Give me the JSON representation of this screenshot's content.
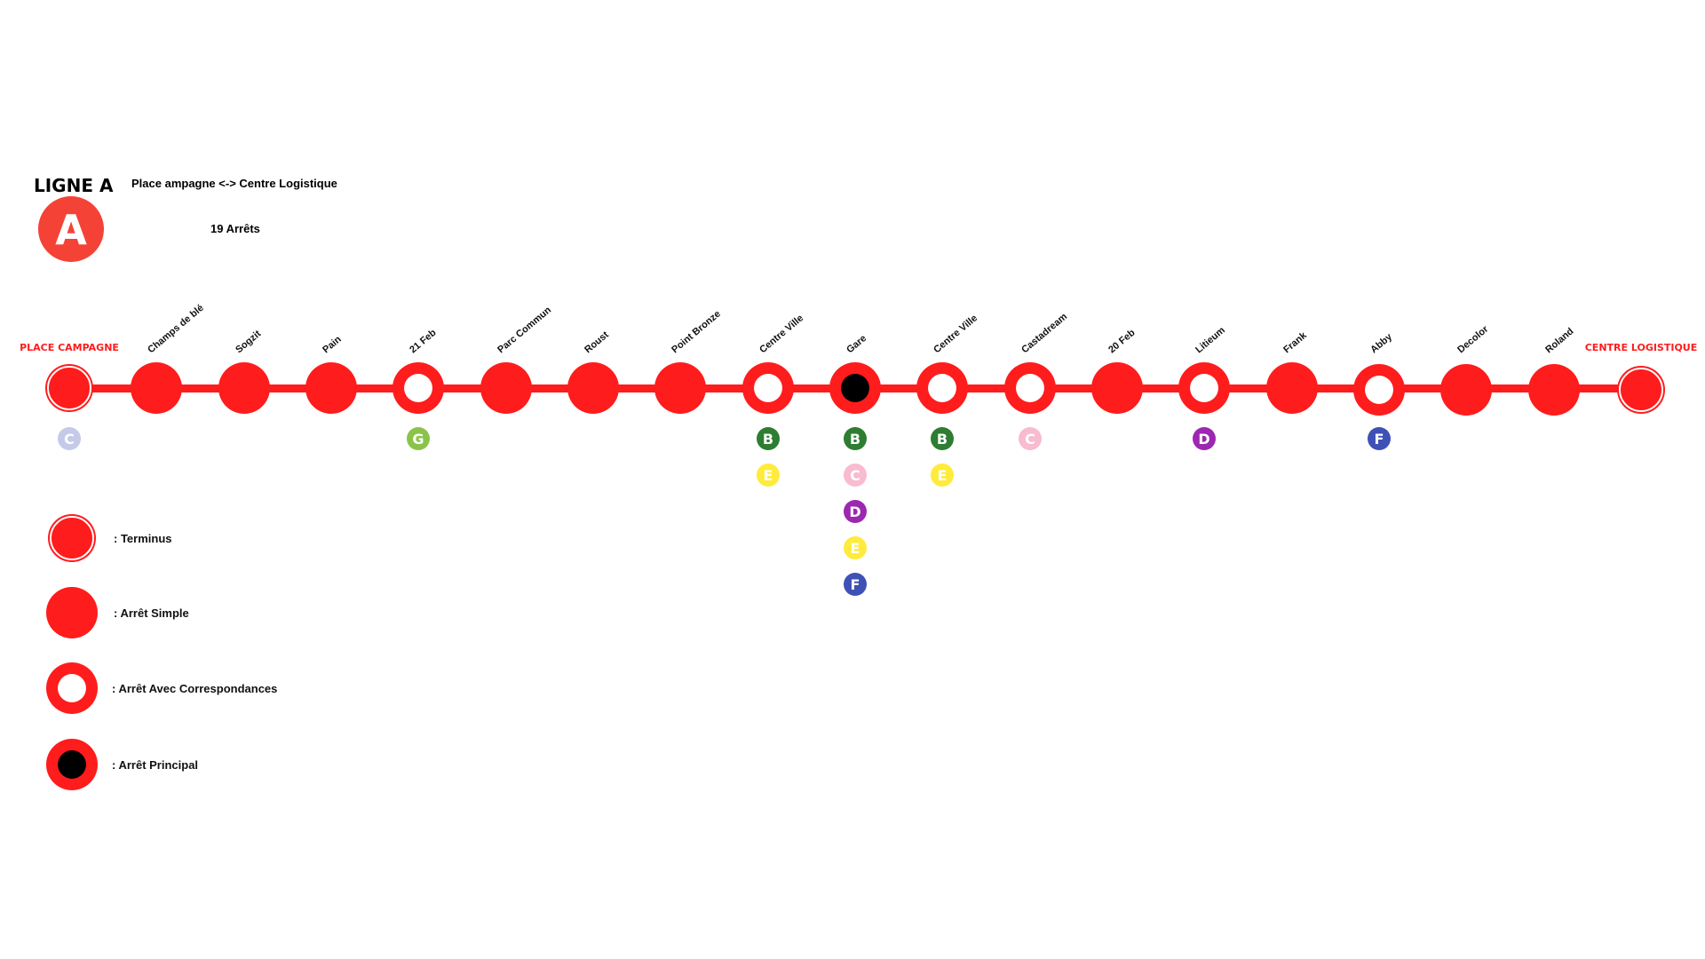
{
  "line": {
    "title": "LIGNE A",
    "badge_letter": "A",
    "route": "Place ampagne <-> Centre Logistique",
    "stop_count": "19 Arrêts",
    "color": "#ff1c1c",
    "badge_color": "#f44336"
  },
  "stops": [
    {
      "name": "PLACE CAMPAGNE",
      "type": "terminus",
      "connections": [
        "C"
      ]
    },
    {
      "name": "Champs de blé",
      "type": "simple",
      "connections": []
    },
    {
      "name": "Sogzit",
      "type": "simple",
      "connections": []
    },
    {
      "name": "Pain",
      "type": "simple",
      "connections": []
    },
    {
      "name": "21 Feb",
      "type": "correspondance",
      "connections": [
        "G"
      ]
    },
    {
      "name": "Parc Commun",
      "type": "simple",
      "connections": []
    },
    {
      "name": "Roust",
      "type": "simple",
      "connections": []
    },
    {
      "name": "Point Bronze",
      "type": "simple",
      "connections": []
    },
    {
      "name": "Centre Ville",
      "type": "correspondance",
      "connections": [
        "B",
        "E"
      ]
    },
    {
      "name": "Gare",
      "type": "principal",
      "connections": [
        "B",
        "C",
        "D",
        "E",
        "F"
      ]
    },
    {
      "name": "Centre Ville",
      "type": "correspondance",
      "connections": [
        "B",
        "E"
      ]
    },
    {
      "name": "Castadream",
      "type": "correspondance",
      "connections": [
        "C"
      ]
    },
    {
      "name": "20 Feb",
      "type": "simple",
      "connections": []
    },
    {
      "name": "Litieum",
      "type": "correspondance",
      "connections": [
        "D"
      ]
    },
    {
      "name": "Frank",
      "type": "simple",
      "connections": []
    },
    {
      "name": "Abby",
      "type": "correspondance",
      "connections": [
        "F"
      ]
    },
    {
      "name": "Decolor",
      "type": "simple",
      "connections": []
    },
    {
      "name": "Roland",
      "type": "simple",
      "connections": []
    },
    {
      "name": "CENTRE LOGISTIQUE",
      "type": "terminus",
      "connections": []
    }
  ],
  "connection_colors": {
    "B": "#2e7d32",
    "C": "#f8bbd0",
    "D": "#9c27b0",
    "E": "#ffeb3b",
    "F": "#3f51b5",
    "G": "#8bc34a",
    "C_first": "#c5cae9"
  },
  "legend": [
    {
      "type": "terminus",
      "label": ": Terminus"
    },
    {
      "type": "simple",
      "label": ": Arrêt Simple"
    },
    {
      "type": "correspondance",
      "label": ": Arrêt Avec Correspondances"
    },
    {
      "type": "principal",
      "label": ": Arrêt Principal"
    }
  ]
}
